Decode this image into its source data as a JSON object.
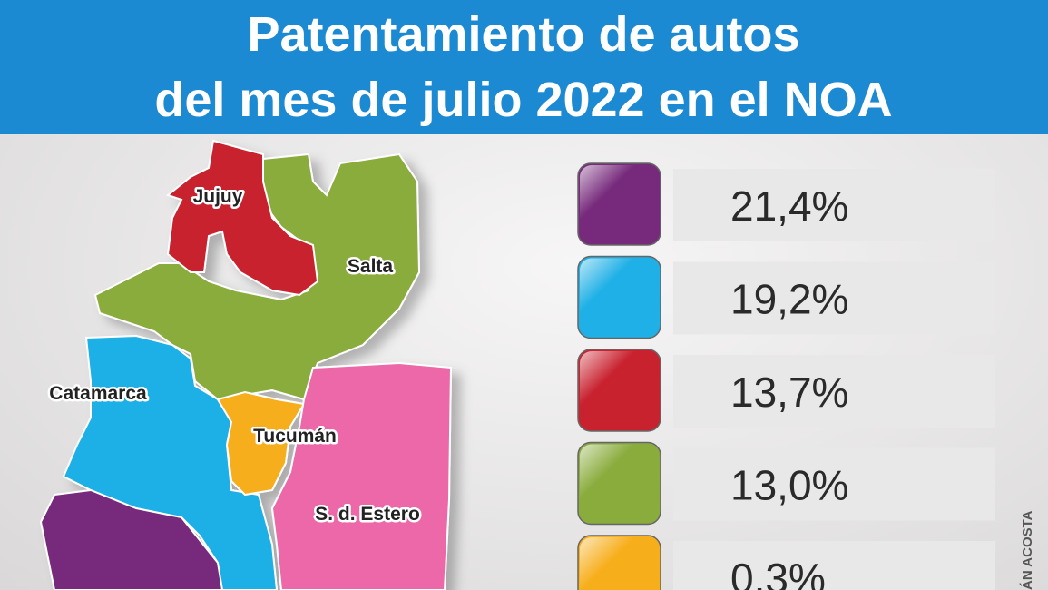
{
  "header": {
    "title": [
      "Patentamiento de autos",
      "del mes de julio 2022 en el NOA"
    ]
  },
  "map": {
    "regions": [
      "Jujuy",
      "Salta",
      "Catamarca",
      "Tucumán",
      "S. d. Estero"
    ]
  },
  "legend": [
    "21,4%",
    "19,2%",
    "13,7%",
    "13,0%",
    "0,3%"
  ],
  "credit": "ÁN ACOSTA"
}
